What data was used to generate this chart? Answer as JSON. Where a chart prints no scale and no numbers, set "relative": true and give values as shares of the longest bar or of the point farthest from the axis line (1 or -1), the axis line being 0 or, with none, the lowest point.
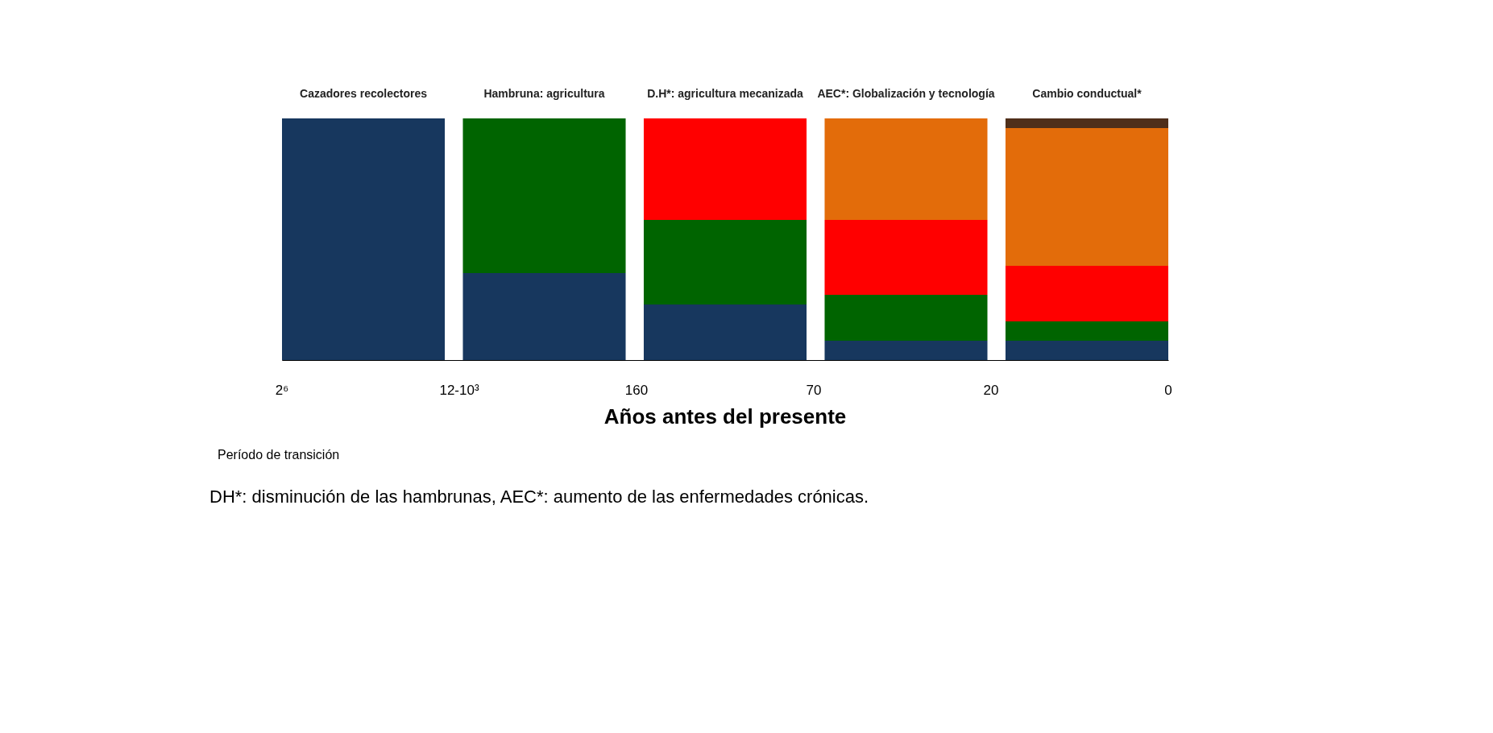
{
  "chart_data": {
    "type": "bar",
    "stacked": true,
    "relative": true,
    "categories": [
      "Cazadores recolectores",
      "Hambruna: agricultura",
      "D.H*: agricultura mecanizada",
      "AEC*: Globalización y tecnología",
      "Cambio conductual*"
    ],
    "series": [
      {
        "color": "#17375e",
        "values": [
          1,
          0.36,
          0.23,
          0.08,
          0.08
        ]
      },
      {
        "color": "#006400",
        "values": [
          null,
          0.64,
          0.35,
          0.19,
          0.08
        ]
      },
      {
        "color": "#ff0000",
        "values": [
          null,
          null,
          0.42,
          0.31,
          0.23
        ]
      },
      {
        "color": "#e36c0a",
        "values": [
          null,
          null,
          null,
          0.42,
          0.57
        ]
      },
      {
        "color": "#4f2f1a",
        "values": [
          null,
          null,
          null,
          null,
          0.04
        ]
      }
    ],
    "xlabel": "Años antes del presente",
    "annotations": [
      "2⁶",
      "12-10³",
      "160",
      "70",
      "20",
      "0",
      "Período de transición",
      "DH*: disminución de las hambrunas, AEC*: aumento de las enfermedades crónicas."
    ],
    "legend": false
  }
}
